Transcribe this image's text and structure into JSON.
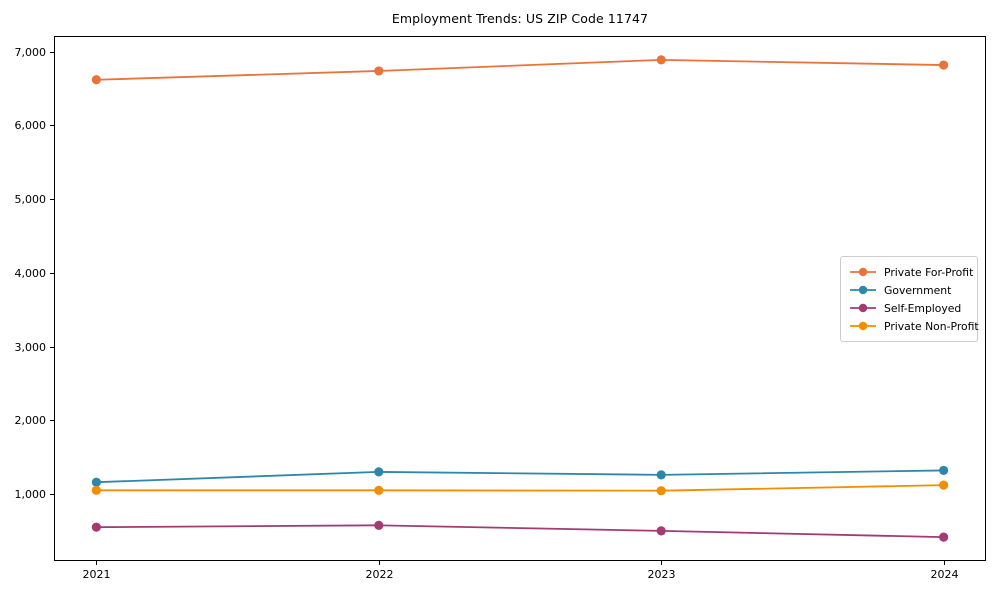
{
  "chart_data": {
    "type": "line",
    "title": "Employment Trends: US ZIP Code 11747",
    "x": [
      2021,
      2022,
      2023,
      2024
    ],
    "x_tick_labels": [
      "2021",
      "2022",
      "2023",
      "2024"
    ],
    "y_ticks": [
      1000,
      2000,
      3000,
      4000,
      5000,
      6000,
      7000
    ],
    "y_tick_labels": [
      "1,000",
      "2,000",
      "3,000",
      "4,000",
      "5,000",
      "6,000",
      "7,000"
    ],
    "xlim": [
      2020.85,
      2024.15
    ],
    "ylim": [
      91,
      7214
    ],
    "grid": false,
    "legend_position": "center-right",
    "axis_color": "#000000",
    "background_color": "#ffffff",
    "series": [
      {
        "name": "Private For-Profit",
        "color": "#E8743B",
        "values": [
          6620,
          6740,
          6890,
          6820
        ]
      },
      {
        "name": "Government",
        "color": "#2E86AB",
        "values": [
          1160,
          1300,
          1260,
          1320
        ]
      },
      {
        "name": "Self-Employed",
        "color": "#A23B72",
        "values": [
          550,
          575,
          500,
          415
        ]
      },
      {
        "name": "Private Non-Profit",
        "color": "#F18F01",
        "values": [
          1050,
          1050,
          1045,
          1120
        ]
      }
    ]
  }
}
